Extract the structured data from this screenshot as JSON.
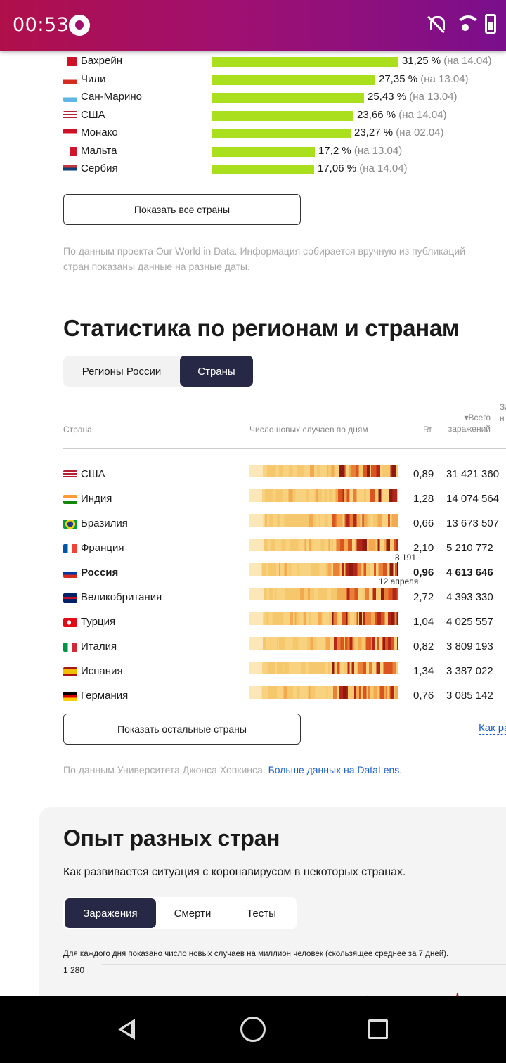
{
  "status": {
    "time": "00:53"
  },
  "vaccination": {
    "rows": [
      {
        "name": "Бахрейн",
        "pct": "31,25 %",
        "date": "(на 14.04)",
        "value": 31.25
      },
      {
        "name": "Чили",
        "pct": "27,35 %",
        "date": "(на 13.04)",
        "value": 27.35
      },
      {
        "name": "Сан-Марино",
        "pct": "25,43 %",
        "date": "(на 13.04)",
        "value": 25.43
      },
      {
        "name": "США",
        "pct": "23,66 %",
        "date": "(на 14.04)",
        "value": 23.66
      },
      {
        "name": "Монако",
        "pct": "23,27 %",
        "date": "(на 02.04)",
        "value": 23.27
      },
      {
        "name": "Мальта",
        "pct": "17,2 %",
        "date": "(на 13.04)",
        "value": 17.2
      },
      {
        "name": "Сербия",
        "pct": "17,06 %",
        "date": "(на 14.04)",
        "value": 17.06
      }
    ],
    "show_all_label": "Показать все страны",
    "source_line1": "По данным проекта Our World in Data. Информация собирается вручную из публикаций",
    "source_line2": "стран показаны данные на разные даты."
  },
  "stats": {
    "title": "Статистика по регионам и странам",
    "tabs": [
      {
        "label": "Регионы России",
        "active": false
      },
      {
        "label": "Страны",
        "active": true
      }
    ],
    "columns": {
      "country": "Страна",
      "daily": "Число новых случаев по дням",
      "rt": "Rt",
      "total_line1": "▾Всего",
      "total_line2": "заражений",
      "extra_line1": "За",
      "extra_line2": "н"
    },
    "rows": [
      {
        "name": "США",
        "rt": "0,89",
        "total": "31 421 360",
        "highlight": false
      },
      {
        "name": "Индия",
        "rt": "1,28",
        "total": "14 074 564",
        "highlight": false
      },
      {
        "name": "Бразилия",
        "rt": "0,66",
        "total": "13 673 507",
        "highlight": false
      },
      {
        "name": "Франция",
        "rt": "2,10",
        "total": "5 210 772",
        "highlight": false
      },
      {
        "name": "Россия",
        "rt": "0,96",
        "total": "4 613 646",
        "highlight": true
      },
      {
        "name": "Великобритания",
        "rt": "2,72",
        "total": "4 393 330",
        "highlight": false
      },
      {
        "name": "Турция",
        "rt": "1,04",
        "total": "4 025 557",
        "highlight": false
      },
      {
        "name": "Италия",
        "rt": "0,82",
        "total": "3 809 193",
        "highlight": false
      },
      {
        "name": "Испания",
        "rt": "1,34",
        "total": "3 387 022",
        "highlight": false
      },
      {
        "name": "Германия",
        "rt": "0,76",
        "total": "3 085 142",
        "highlight": false
      }
    ],
    "tooltip_value": "8 191",
    "tooltip_date": "12 апреля",
    "show_rest_label": "Показать остальные страны",
    "side_link": "Как ра",
    "source_prefix": "По данным Университета Джонса Хопкинса.",
    "source_link": "Больше данных на DataLens."
  },
  "experience": {
    "title": "Опыт разных стран",
    "subtitle": "Как развивается ситуация с коронавирусом в некоторых странах.",
    "tabs": [
      {
        "label": "Заражения",
        "active": true
      },
      {
        "label": "Смерти",
        "active": false
      },
      {
        "label": "Тесты",
        "active": false
      }
    ],
    "chart_note": "Для каждого дня показано число новых случаев на миллион человек (скользящее среднее за 7 дней).",
    "y_top": "1 280"
  },
  "colors": {
    "accent_bar": "#aadf1d",
    "dark_tab": "#262845",
    "link": "#1a5fc9"
  }
}
